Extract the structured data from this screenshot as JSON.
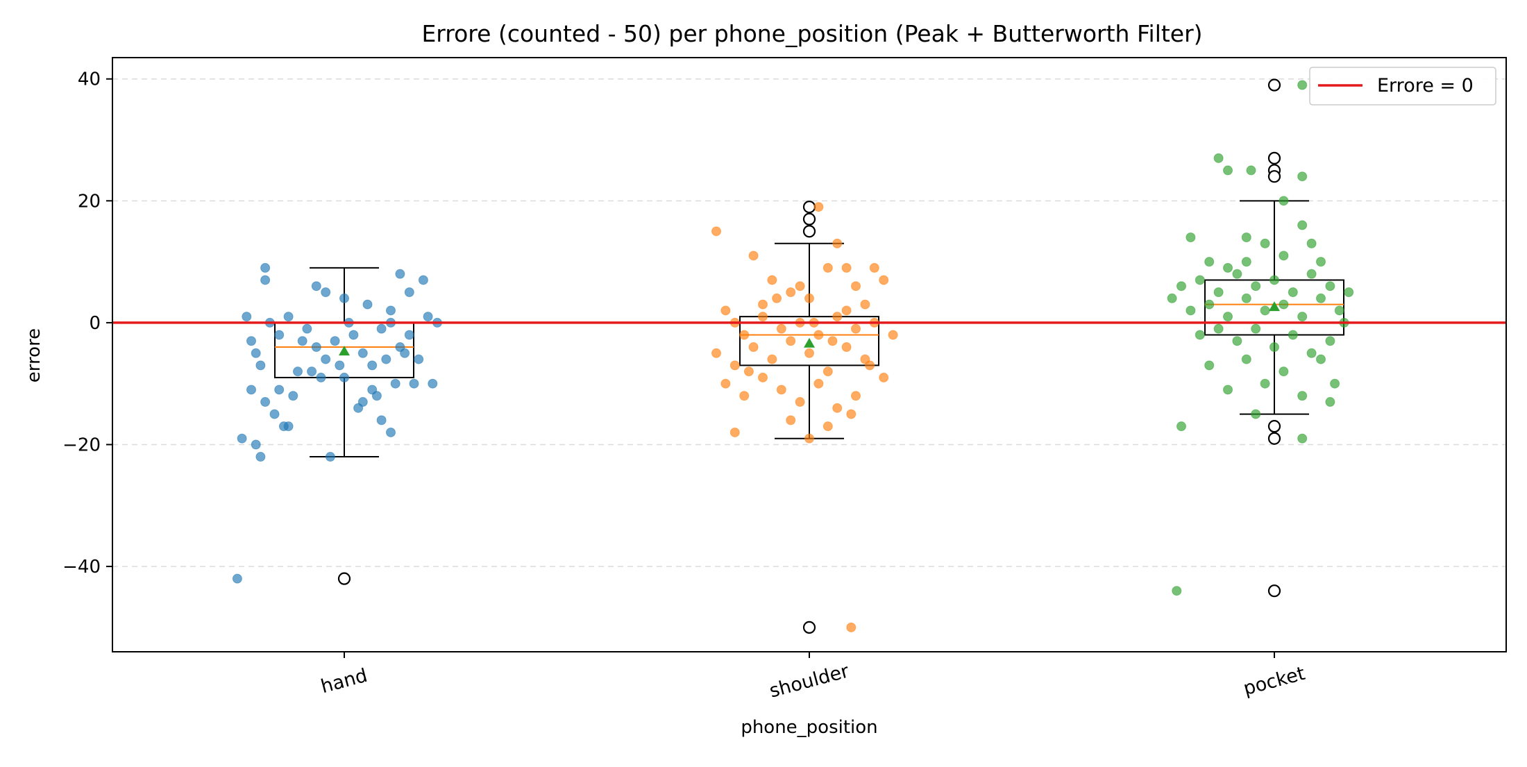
{
  "chart_data": {
    "type": "box",
    "title": "Errore (counted - 50) per phone_position (Peak + Butterworth Filter)",
    "xlabel": "phone_position",
    "ylabel": "errore",
    "ylim": [
      -54,
      43.5
    ],
    "yticks": [
      -40,
      -20,
      0,
      20,
      40
    ],
    "ytick_labels": [
      "−40",
      "−20",
      "0",
      "20",
      "40"
    ],
    "grid": "horizontal dashed",
    "legend": {
      "position": "top-right",
      "entries": [
        {
          "label": "Errore = 0",
          "color": "#e41a1c"
        }
      ]
    },
    "reference_line": {
      "y": 0,
      "label": "Errore = 0",
      "color": "#e41a1c"
    },
    "categories": [
      "hand",
      "shoulder",
      "pocket"
    ],
    "series": [
      {
        "category": "hand",
        "color": "#1f77b4",
        "box": {
          "q1": -9,
          "median": -4,
          "q3": 0,
          "whisker_low": -22,
          "whisker_high": 9,
          "mean": -4.7
        },
        "outliers": [
          -42
        ],
        "points": [
          {
            "x": -0.21,
            "y": 1
          },
          {
            "x": -0.19,
            "y": -5
          },
          {
            "x": -0.2,
            "y": -3
          },
          {
            "x": -0.18,
            "y": -7
          },
          {
            "x": -0.16,
            "y": 0
          },
          {
            "x": -0.14,
            "y": -2
          },
          {
            "x": -0.12,
            "y": 1
          },
          {
            "x": -0.1,
            "y": -8
          },
          {
            "x": -0.08,
            "y": -1
          },
          {
            "x": -0.06,
            "y": -4
          },
          {
            "x": -0.04,
            "y": -6
          },
          {
            "x": -0.02,
            "y": -3
          },
          {
            "x": 0.0,
            "y": -9
          },
          {
            "x": 0.02,
            "y": -2
          },
          {
            "x": 0.04,
            "y": -5
          },
          {
            "x": 0.06,
            "y": -7
          },
          {
            "x": 0.08,
            "y": -1
          },
          {
            "x": 0.1,
            "y": 0
          },
          {
            "x": 0.12,
            "y": -4
          },
          {
            "x": 0.14,
            "y": -2
          },
          {
            "x": 0.16,
            "y": -6
          },
          {
            "x": 0.18,
            "y": 1
          },
          {
            "x": 0.2,
            "y": 0
          },
          {
            "x": -0.2,
            "y": -11
          },
          {
            "x": -0.17,
            "y": -13
          },
          {
            "x": -0.15,
            "y": -15
          },
          {
            "x": -0.13,
            "y": -17
          },
          {
            "x": -0.11,
            "y": -12
          },
          {
            "x": -0.05,
            "y": -9
          },
          {
            "x": 0.03,
            "y": -14
          },
          {
            "x": 0.07,
            "y": -12
          },
          {
            "x": 0.11,
            "y": -10
          },
          {
            "x": 0.15,
            "y": -10
          },
          {
            "x": 0.19,
            "y": -10
          },
          {
            "x": -0.22,
            "y": -19
          },
          {
            "x": -0.19,
            "y": -20
          },
          {
            "x": -0.18,
            "y": -22
          },
          {
            "x": -0.03,
            "y": -22
          },
          {
            "x": 0.1,
            "y": -18
          },
          {
            "x": -0.12,
            "y": -17
          },
          {
            "x": 0.08,
            "y": -16
          },
          {
            "x": -0.17,
            "y": 9
          },
          {
            "x": -0.17,
            "y": 7
          },
          {
            "x": -0.06,
            "y": 6
          },
          {
            "x": -0.04,
            "y": 5
          },
          {
            "x": 0.0,
            "y": 4
          },
          {
            "x": 0.05,
            "y": 3
          },
          {
            "x": 0.12,
            "y": 8
          },
          {
            "x": 0.17,
            "y": 7
          },
          {
            "x": 0.14,
            "y": 5
          },
          {
            "x": 0.1,
            "y": 2
          },
          {
            "x": 0.01,
            "y": 0
          },
          {
            "x": -0.09,
            "y": -3
          },
          {
            "x": -0.01,
            "y": -7
          },
          {
            "x": 0.09,
            "y": -6
          },
          {
            "x": 0.13,
            "y": -5
          },
          {
            "x": -0.07,
            "y": -8
          },
          {
            "x": 0.06,
            "y": -11
          },
          {
            "x": -0.14,
            "y": -11
          },
          {
            "x": 0.04,
            "y": -13
          },
          {
            "x": -0.23,
            "y": -42
          }
        ]
      },
      {
        "category": "shoulder",
        "color": "#ff7f0e",
        "box": {
          "q1": -7,
          "median": -2,
          "q3": 1,
          "whisker_low": -19,
          "whisker_high": 13,
          "mean": -3.4
        },
        "outliers": [
          19,
          17,
          15,
          -50
        ],
        "points": [
          {
            "x": -0.2,
            "y": 15
          },
          {
            "x": -0.12,
            "y": 11
          },
          {
            "x": 0.02,
            "y": 19
          },
          {
            "x": 0.06,
            "y": 13
          },
          {
            "x": -0.08,
            "y": 7
          },
          {
            "x": -0.04,
            "y": 5
          },
          {
            "x": 0.0,
            "y": 4
          },
          {
            "x": 0.04,
            "y": 9
          },
          {
            "x": 0.08,
            "y": 9
          },
          {
            "x": 0.1,
            "y": 6
          },
          {
            "x": 0.14,
            "y": 9
          },
          {
            "x": -0.18,
            "y": 2
          },
          {
            "x": -0.16,
            "y": 0
          },
          {
            "x": -0.14,
            "y": -2
          },
          {
            "x": -0.1,
            "y": 1
          },
          {
            "x": -0.06,
            "y": -1
          },
          {
            "x": -0.02,
            "y": 0
          },
          {
            "x": 0.02,
            "y": -2
          },
          {
            "x": 0.06,
            "y": 1
          },
          {
            "x": 0.1,
            "y": -1
          },
          {
            "x": 0.14,
            "y": 0
          },
          {
            "x": 0.18,
            "y": -2
          },
          {
            "x": -0.2,
            "y": -5
          },
          {
            "x": -0.16,
            "y": -7
          },
          {
            "x": -0.12,
            "y": -4
          },
          {
            "x": -0.08,
            "y": -6
          },
          {
            "x": -0.04,
            "y": -3
          },
          {
            "x": 0.0,
            "y": -5
          },
          {
            "x": 0.04,
            "y": -8
          },
          {
            "x": 0.08,
            "y": -4
          },
          {
            "x": 0.12,
            "y": -6
          },
          {
            "x": 0.16,
            "y": -9
          },
          {
            "x": -0.18,
            "y": -10
          },
          {
            "x": -0.14,
            "y": -12
          },
          {
            "x": -0.1,
            "y": -9
          },
          {
            "x": -0.06,
            "y": -11
          },
          {
            "x": -0.02,
            "y": -13
          },
          {
            "x": 0.02,
            "y": -10
          },
          {
            "x": 0.06,
            "y": -14
          },
          {
            "x": 0.1,
            "y": -12
          },
          {
            "x": -0.16,
            "y": -18
          },
          {
            "x": -0.04,
            "y": -16
          },
          {
            "x": 0.0,
            "y": -19
          },
          {
            "x": 0.04,
            "y": -17
          },
          {
            "x": 0.12,
            "y": 3
          },
          {
            "x": -0.02,
            "y": 6
          },
          {
            "x": 0.08,
            "y": 2
          },
          {
            "x": -0.1,
            "y": 3
          },
          {
            "x": 0.05,
            "y": -3
          },
          {
            "x": -0.07,
            "y": 4
          },
          {
            "x": 0.16,
            "y": 7
          },
          {
            "x": 0.13,
            "y": -7
          },
          {
            "x": -0.13,
            "y": -8
          },
          {
            "x": 0.01,
            "y": 0
          },
          {
            "x": 0.09,
            "y": -15
          },
          {
            "x": 0.09,
            "y": -50
          }
        ]
      },
      {
        "category": "pocket",
        "color": "#2ca02c",
        "box": {
          "q1": -2,
          "median": 3,
          "q3": 7,
          "whisker_low": -15,
          "whisker_high": 20,
          "mean": 2.6
        },
        "outliers": [
          39,
          27,
          25,
          24,
          -17,
          -19,
          -44
        ],
        "points": [
          {
            "x": 0.06,
            "y": 39
          },
          {
            "x": -0.12,
            "y": 27
          },
          {
            "x": -0.1,
            "y": 25
          },
          {
            "x": -0.05,
            "y": 25
          },
          {
            "x": 0.06,
            "y": 24
          },
          {
            "x": 0.02,
            "y": 20
          },
          {
            "x": -0.18,
            "y": 14
          },
          {
            "x": -0.06,
            "y": 14
          },
          {
            "x": -0.02,
            "y": 13
          },
          {
            "x": 0.06,
            "y": 16
          },
          {
            "x": 0.08,
            "y": 13
          },
          {
            "x": -0.14,
            "y": 10
          },
          {
            "x": -0.1,
            "y": 9
          },
          {
            "x": -0.06,
            "y": 10
          },
          {
            "x": 0.02,
            "y": 11
          },
          {
            "x": 0.1,
            "y": 10
          },
          {
            "x": -0.2,
            "y": 6
          },
          {
            "x": -0.16,
            "y": 7
          },
          {
            "x": -0.12,
            "y": 5
          },
          {
            "x": -0.08,
            "y": 8
          },
          {
            "x": -0.04,
            "y": 6
          },
          {
            "x": 0.0,
            "y": 7
          },
          {
            "x": 0.04,
            "y": 5
          },
          {
            "x": 0.08,
            "y": 8
          },
          {
            "x": 0.12,
            "y": 6
          },
          {
            "x": -0.18,
            "y": 2
          },
          {
            "x": -0.14,
            "y": 3
          },
          {
            "x": -0.1,
            "y": 1
          },
          {
            "x": -0.06,
            "y": 4
          },
          {
            "x": -0.02,
            "y": 2
          },
          {
            "x": 0.02,
            "y": 3
          },
          {
            "x": 0.06,
            "y": 1
          },
          {
            "x": 0.1,
            "y": 4
          },
          {
            "x": 0.14,
            "y": 2
          },
          {
            "x": -0.16,
            "y": -2
          },
          {
            "x": -0.12,
            "y": -1
          },
          {
            "x": -0.08,
            "y": -3
          },
          {
            "x": -0.04,
            "y": -1
          },
          {
            "x": 0.0,
            "y": -4
          },
          {
            "x": 0.04,
            "y": -2
          },
          {
            "x": 0.08,
            "y": -5
          },
          {
            "x": 0.12,
            "y": -3
          },
          {
            "x": -0.14,
            "y": -7
          },
          {
            "x": -0.06,
            "y": -6
          },
          {
            "x": 0.02,
            "y": -8
          },
          {
            "x": 0.1,
            "y": -6
          },
          {
            "x": -0.1,
            "y": -11
          },
          {
            "x": -0.02,
            "y": -10
          },
          {
            "x": 0.06,
            "y": -12
          },
          {
            "x": 0.12,
            "y": -13
          },
          {
            "x": -0.2,
            "y": -17
          },
          {
            "x": 0.06,
            "y": -19
          },
          {
            "x": 0.16,
            "y": 5
          },
          {
            "x": 0.15,
            "y": 0
          },
          {
            "x": -0.22,
            "y": 4
          },
          {
            "x": 0.13,
            "y": -10
          },
          {
            "x": -0.04,
            "y": -15
          },
          {
            "x": -0.21,
            "y": -44
          }
        ]
      }
    ]
  }
}
